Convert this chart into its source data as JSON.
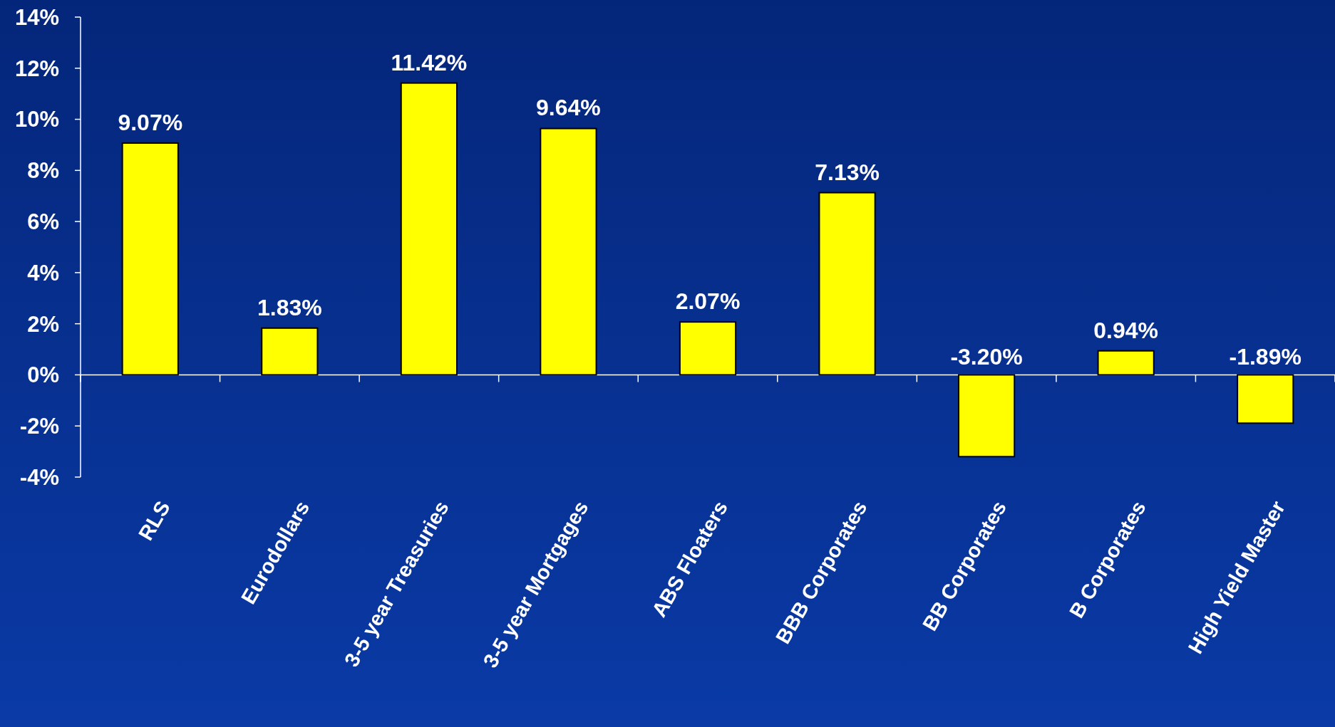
{
  "chart_data": {
    "type": "bar",
    "categories": [
      "RLS",
      "Eurodollars",
      "3-5 year Treasuries",
      "3-5 year Mortgages",
      "ABS Floaters",
      "BBB Corporates",
      "BB Corporates",
      "B Corporates",
      "High Yield Master"
    ],
    "values": [
      9.07,
      1.83,
      11.42,
      9.64,
      2.07,
      7.13,
      -3.2,
      0.94,
      -1.89
    ],
    "value_labels": [
      "9.07%",
      "1.83%",
      "11.42%",
      "9.64%",
      "2.07%",
      "7.13%",
      "-3.20%",
      "0.94%",
      "-1.89%"
    ],
    "color": "#ffff00",
    "ylim": [
      -4,
      14
    ],
    "yticks": [
      {
        "value": -4,
        "label": "-4%"
      },
      {
        "value": -2,
        "label": "-2%"
      },
      {
        "value": 0,
        "label": "0%"
      },
      {
        "value": 2,
        "label": "2%"
      },
      {
        "value": 4,
        "label": "4%"
      },
      {
        "value": 6,
        "label": "6%"
      },
      {
        "value": 8,
        "label": "8%"
      },
      {
        "value": 10,
        "label": "10%"
      },
      {
        "value": 12,
        "label": "12%"
      },
      {
        "value": 14,
        "label": "14%"
      }
    ],
    "tick_labels": true
  }
}
